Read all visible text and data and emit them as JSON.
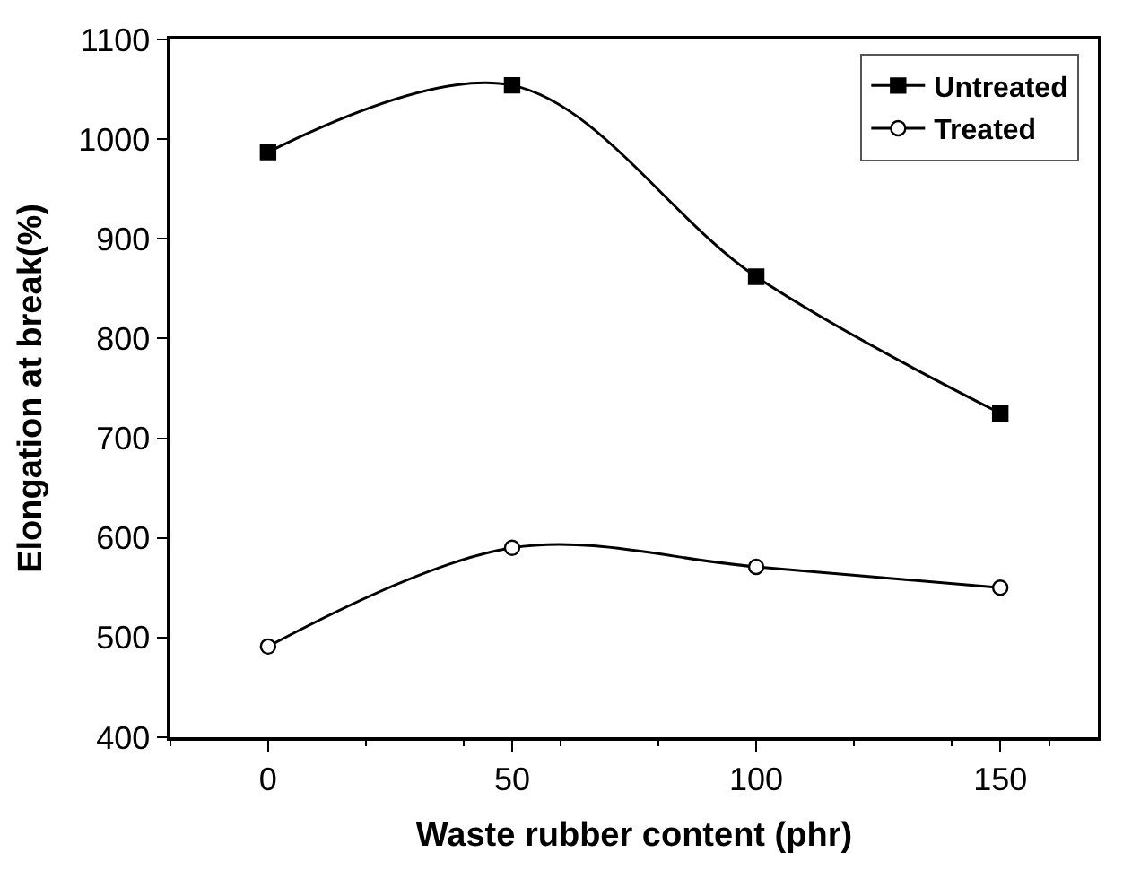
{
  "chart_data": {
    "type": "line",
    "xlabel": "Waste rubber content (phr)",
    "ylabel": "Elongation at break(%)",
    "x": [
      0,
      50,
      100,
      150
    ],
    "series": [
      {
        "name": "Untreated",
        "color": "#000000",
        "values": [
          987,
          1054,
          862,
          725
        ],
        "marker": "square"
      },
      {
        "name": "Treated",
        "color": "#000000",
        "values": [
          491,
          590,
          571,
          550
        ],
        "marker": "circle"
      }
    ],
    "xlim": [
      -20,
      170
    ],
    "xticks": [
      0,
      50,
      100,
      150
    ],
    "ylim": [
      400,
      1100
    ],
    "yticks": [
      400,
      500,
      600,
      700,
      800,
      900,
      1000,
      1100
    ],
    "legend": "top right",
    "line_style": "solid"
  }
}
